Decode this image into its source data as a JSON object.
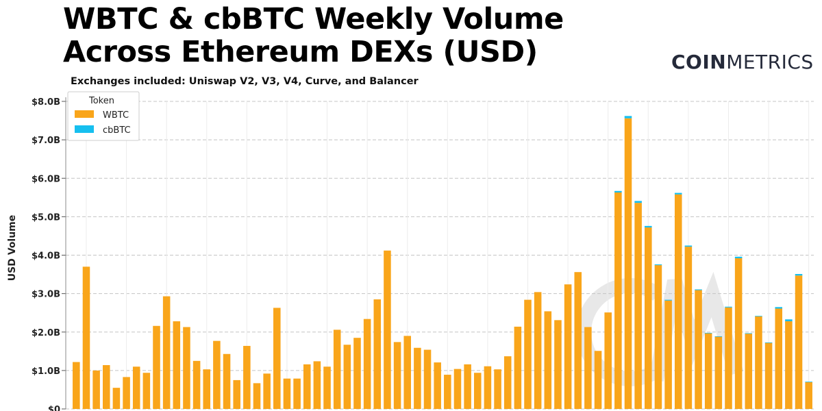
{
  "chart_data": {
    "type": "bar",
    "stacked": true,
    "title_lines": [
      "WBTC & cbBTC Weekly Volume",
      "Across Ethereum DEXs (USD)"
    ],
    "subtitle": "Exchanges included: Uniswap V2, V3, V4, Curve, and Balancer",
    "brand": {
      "bold": "COIN",
      "light": "METRICS"
    },
    "ylabel": "USD Volume",
    "ylim": [
      0,
      8000000000
    ],
    "yticks": [
      0,
      1000000000,
      2000000000,
      3000000000,
      4000000000,
      5000000000,
      6000000000,
      7000000000,
      8000000000
    ],
    "ytick_labels": [
      "$0",
      "$1.0B",
      "$2.0B",
      "$3.0B",
      "$4.0B",
      "$5.0B",
      "$6.0B",
      "$7.0B",
      "$8.0B"
    ],
    "grid": true,
    "legend": {
      "title": "Token",
      "placement": "top-left"
    },
    "series": [
      {
        "name": "WBTC",
        "color": "#F9A51A",
        "values": [
          1.22,
          3.7,
          1.0,
          1.14,
          0.55,
          0.83,
          1.1,
          0.94,
          2.16,
          2.93,
          2.28,
          2.13,
          1.25,
          1.03,
          1.77,
          1.43,
          0.75,
          1.64,
          0.67,
          0.92,
          2.63,
          0.79,
          0.79,
          1.16,
          1.24,
          1.1,
          2.06,
          1.67,
          1.85,
          2.34,
          2.85,
          4.12,
          1.74,
          1.9,
          1.59,
          1.54,
          1.21,
          0.89,
          1.04,
          1.16,
          0.94,
          1.11,
          1.03,
          1.37,
          2.14,
          2.84,
          3.04,
          2.54,
          2.31,
          3.24,
          3.56,
          2.13,
          1.51,
          2.51,
          5.63,
          7.56,
          5.36,
          4.72,
          3.74,
          2.82,
          5.58,
          4.22,
          3.09,
          1.97,
          1.88,
          2.64,
          3.92,
          1.96,
          2.41,
          1.72,
          2.61,
          2.28,
          3.47,
          0.7
        ]
      },
      {
        "name": "cbBTC",
        "color": "#16BFEF",
        "values": [
          0,
          0,
          0,
          0,
          0,
          0,
          0,
          0,
          0,
          0,
          0,
          0,
          0,
          0,
          0,
          0,
          0,
          0,
          0,
          0,
          0,
          0,
          0,
          0,
          0,
          0,
          0,
          0,
          0,
          0,
          0,
          0,
          0,
          0,
          0,
          0,
          0,
          0,
          0,
          0,
          0,
          0,
          0,
          0,
          0,
          0,
          0,
          0,
          0,
          0,
          0,
          0,
          0,
          0,
          0.04,
          0.06,
          0.05,
          0.04,
          0.02,
          0.02,
          0.04,
          0.03,
          0.02,
          0.01,
          0.01,
          0.02,
          0.04,
          0.01,
          0.01,
          0.01,
          0.04,
          0.05,
          0.04,
          0.01
        ]
      }
    ],
    "value_unit_multiplier": 1000000000
  }
}
